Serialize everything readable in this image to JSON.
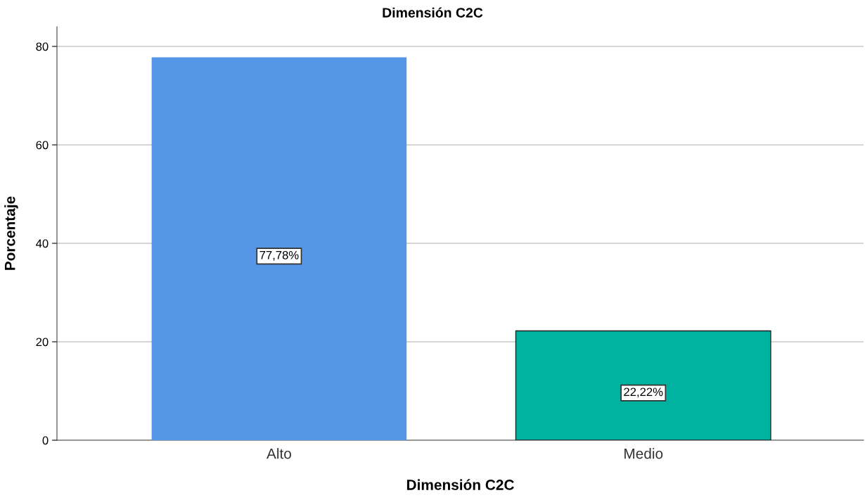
{
  "chart_data": {
    "type": "bar",
    "title": "Dimensión C2C",
    "xlabel": "Dimensión C2C",
    "ylabel": "Porcentaje",
    "categories": [
      "Alto",
      "Medio"
    ],
    "values": [
      77.78,
      22.22
    ],
    "colors": [
      "#5596e6",
      "#00b2a0"
    ],
    "value_labels": [
      "77,78%",
      "22,22%"
    ],
    "ylim": [
      0,
      84
    ],
    "yticks": [
      0,
      20,
      40,
      60,
      80
    ],
    "grid": "y",
    "legend": false
  }
}
